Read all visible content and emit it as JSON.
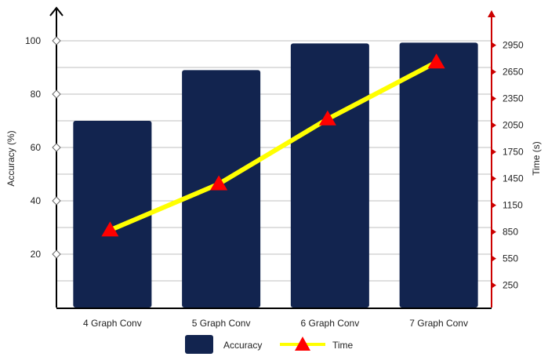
{
  "chart_data": {
    "type": "bar+line",
    "categories": [
      "4 Graph Conv",
      "5 Graph Conv",
      "6 Graph Conv",
      "7 Graph Conv"
    ],
    "series": [
      {
        "name": "Accuracy",
        "type": "bar",
        "axis": "left",
        "values": [
          70,
          89,
          99,
          99.3
        ]
      },
      {
        "name": "Time",
        "type": "line",
        "axis": "right",
        "values": [
          870,
          1390,
          2120,
          2760
        ]
      }
    ],
    "y_left": {
      "label": "Accuracy (%)",
      "ticks": [
        20,
        40,
        60,
        80,
        100
      ],
      "range": [
        0,
        110
      ]
    },
    "y_right": {
      "label": "Time (s)",
      "ticks": [
        250,
        550,
        850,
        1150,
        1450,
        1750,
        2050,
        2350,
        2650,
        2950
      ],
      "range": [
        0,
        3250
      ]
    },
    "grid": true,
    "legend_position": "bottom-center",
    "colors": {
      "bar": "#12244f",
      "line": "#ffff00",
      "marker": "#ff0000",
      "left_axis": "#000000",
      "right_axis": "#cc0000"
    }
  }
}
